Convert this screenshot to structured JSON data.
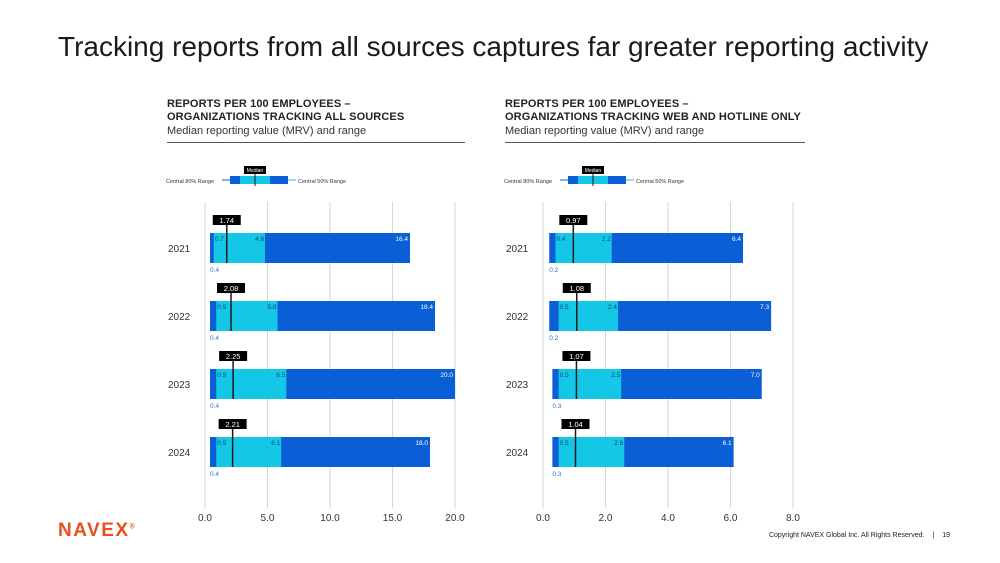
{
  "slide": {
    "title": "Tracking reports from all sources captures far greater reporting activity",
    "logo": "NAVEX",
    "logo_mark": "®",
    "copyright": "Copyright NAVEX Global Inc. All Rights Reserved.",
    "page_number": "19"
  },
  "legend": {
    "central80": "Central 80% Range",
    "central50": "Central 50% Range",
    "median": "Median"
  },
  "colors": {
    "dark_blue": "#0a5fd6",
    "light_blue": "#14c7e6",
    "median_line": "#1a1a1a",
    "label_bg": "#000000",
    "p10_label": "#2a6fd0",
    "grid": "#cccccc"
  },
  "chart_data": [
    {
      "type": "bar",
      "subtype": "range-box",
      "title": "REPORTS PER 100 EMPLOYEES –",
      "title_line2": "ORGANIZATIONS TRACKING ALL SOURCES",
      "subtitle": "Median reporting value (MRV) and range",
      "categories": [
        "2021",
        "2022",
        "2023",
        "2024"
      ],
      "xlim": [
        0,
        20
      ],
      "xticks": [
        "0.0",
        "5.0",
        "10.0",
        "15.0",
        "20.0"
      ],
      "series": [
        {
          "name": "p10",
          "values": [
            0.4,
            0.4,
            0.4,
            0.4
          ]
        },
        {
          "name": "p25",
          "values": [
            0.7,
            0.9,
            0.9,
            0.9
          ]
        },
        {
          "name": "median",
          "values": [
            1.74,
            2.08,
            2.25,
            2.21
          ]
        },
        {
          "name": "p75",
          "values": [
            4.8,
            5.8,
            6.5,
            6.1
          ]
        },
        {
          "name": "p90",
          "values": [
            16.4,
            18.4,
            20.0,
            18.0
          ]
        }
      ],
      "labels": {
        "p10": [
          "0.4",
          "0.4",
          "0.4",
          "0.4"
        ],
        "p25": [
          "0.7",
          "0.9",
          "0.9",
          "0.9"
        ],
        "median": [
          "1.74",
          "2.08",
          "2.25",
          "2.21"
        ],
        "p75": [
          "4.8",
          "5.8",
          "6.5",
          "6.1"
        ],
        "p90": [
          "16.4",
          "18.4",
          "20.0",
          "18.0"
        ]
      }
    },
    {
      "type": "bar",
      "subtype": "range-box",
      "title": "REPORTS PER 100 EMPLOYEES –",
      "title_line2": "ORGANIZATIONS TRACKING WEB AND HOTLINE ONLY",
      "subtitle": "Median reporting value (MRV) and range",
      "categories": [
        "2021",
        "2022",
        "2023",
        "2024"
      ],
      "xlim": [
        0,
        8
      ],
      "xticks": [
        "0.0",
        "2.0",
        "4.0",
        "6.0",
        "8.0"
      ],
      "series": [
        {
          "name": "p10",
          "values": [
            0.2,
            0.2,
            0.3,
            0.3
          ]
        },
        {
          "name": "p25",
          "values": [
            0.4,
            0.5,
            0.5,
            0.5
          ]
        },
        {
          "name": "median",
          "values": [
            0.97,
            1.08,
            1.07,
            1.04
          ]
        },
        {
          "name": "p75",
          "values": [
            2.2,
            2.4,
            2.5,
            2.6
          ]
        },
        {
          "name": "p90",
          "values": [
            6.4,
            7.3,
            7.0,
            6.1
          ]
        }
      ],
      "labels": {
        "p10": [
          "0.2",
          "0.2",
          "0.3",
          "0.3"
        ],
        "p25": [
          "0.4",
          "0.5",
          "0.5",
          "0.5"
        ],
        "median": [
          "0.97",
          "1.08",
          "1.07",
          "1.04"
        ],
        "p75": [
          "2.2",
          "2.4",
          "2.5",
          "2.6"
        ],
        "p90": [
          "6.4",
          "7.3",
          "7.0",
          "6.1"
        ]
      }
    }
  ]
}
